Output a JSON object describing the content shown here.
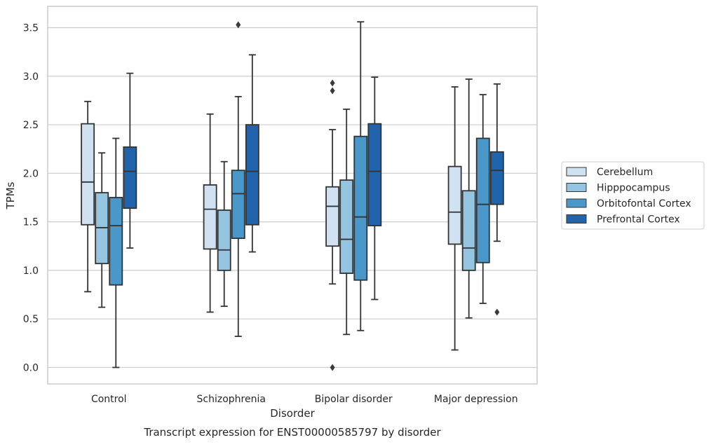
{
  "chart_data": {
    "type": "box",
    "caption": "Transcript expression for ENST00000585797 by disorder",
    "xlabel": "Disorder",
    "ylabel": "TPMs",
    "ylim": [
      -0.17,
      3.72
    ],
    "yticks": [
      "0.0",
      "0.5",
      "1.0",
      "1.5",
      "2.0",
      "2.5",
      "3.0",
      "3.5"
    ],
    "ytick_values": [
      0.0,
      0.5,
      1.0,
      1.5,
      2.0,
      2.5,
      3.0,
      3.5
    ],
    "grid": true,
    "legend_position": "right",
    "categories": [
      "Control",
      "Schizophrenia",
      "Bipolar disorder",
      "Major depression"
    ],
    "series": [
      {
        "name": "Cerebellum",
        "color": "#d0e1f2",
        "boxes": [
          {
            "whislo": 0.78,
            "q1": 1.47,
            "med": 1.91,
            "q3": 2.51,
            "whishi": 2.74,
            "fliers": []
          },
          {
            "whislo": 0.57,
            "q1": 1.22,
            "med": 1.63,
            "q3": 1.88,
            "whishi": 2.61,
            "fliers": []
          },
          {
            "whislo": 0.86,
            "q1": 1.25,
            "med": 1.66,
            "q3": 1.86,
            "whishi": 2.45,
            "fliers": [
              0.0,
              2.85,
              2.93
            ]
          },
          {
            "whislo": 0.18,
            "q1": 1.27,
            "med": 1.6,
            "q3": 2.07,
            "whishi": 2.89,
            "fliers": []
          }
        ]
      },
      {
        "name": "Hipppocampus",
        "color": "#94c4df",
        "boxes": [
          {
            "whislo": 0.62,
            "q1": 1.07,
            "med": 1.44,
            "q3": 1.8,
            "whishi": 2.21,
            "fliers": []
          },
          {
            "whislo": 0.63,
            "q1": 1.0,
            "med": 1.21,
            "q3": 1.62,
            "whishi": 2.12,
            "fliers": []
          },
          {
            "whislo": 0.34,
            "q1": 0.97,
            "med": 1.32,
            "q3": 1.93,
            "whishi": 2.66,
            "fliers": []
          },
          {
            "whislo": 0.51,
            "q1": 1.0,
            "med": 1.23,
            "q3": 1.82,
            "whishi": 2.97,
            "fliers": []
          }
        ]
      },
      {
        "name": "Orbitofontal Cortex",
        "color": "#4a98c9",
        "boxes": [
          {
            "whislo": 0.0,
            "q1": 0.85,
            "med": 1.46,
            "q3": 1.75,
            "whishi": 2.36,
            "fliers": []
          },
          {
            "whislo": 0.32,
            "q1": 1.33,
            "med": 1.79,
            "q3": 2.03,
            "whishi": 2.79,
            "fliers": [
              3.53
            ]
          },
          {
            "whislo": 0.38,
            "q1": 0.9,
            "med": 1.55,
            "q3": 2.38,
            "whishi": 3.56,
            "fliers": []
          },
          {
            "whislo": 0.66,
            "q1": 1.08,
            "med": 1.68,
            "q3": 2.36,
            "whishi": 2.81,
            "fliers": []
          }
        ]
      },
      {
        "name": "Prefrontal Cortex",
        "color": "#2164ab",
        "boxes": [
          {
            "whislo": 1.23,
            "q1": 1.64,
            "med": 2.02,
            "q3": 2.27,
            "whishi": 3.03,
            "fliers": []
          },
          {
            "whislo": 1.19,
            "q1": 1.47,
            "med": 2.02,
            "q3": 2.5,
            "whishi": 3.22,
            "fliers": []
          },
          {
            "whislo": 0.7,
            "q1": 1.46,
            "med": 2.02,
            "q3": 2.51,
            "whishi": 2.99,
            "fliers": []
          },
          {
            "whislo": 1.3,
            "q1": 1.68,
            "med": 2.03,
            "q3": 2.22,
            "whishi": 2.92,
            "fliers": [
              0.57
            ]
          }
        ]
      }
    ]
  }
}
